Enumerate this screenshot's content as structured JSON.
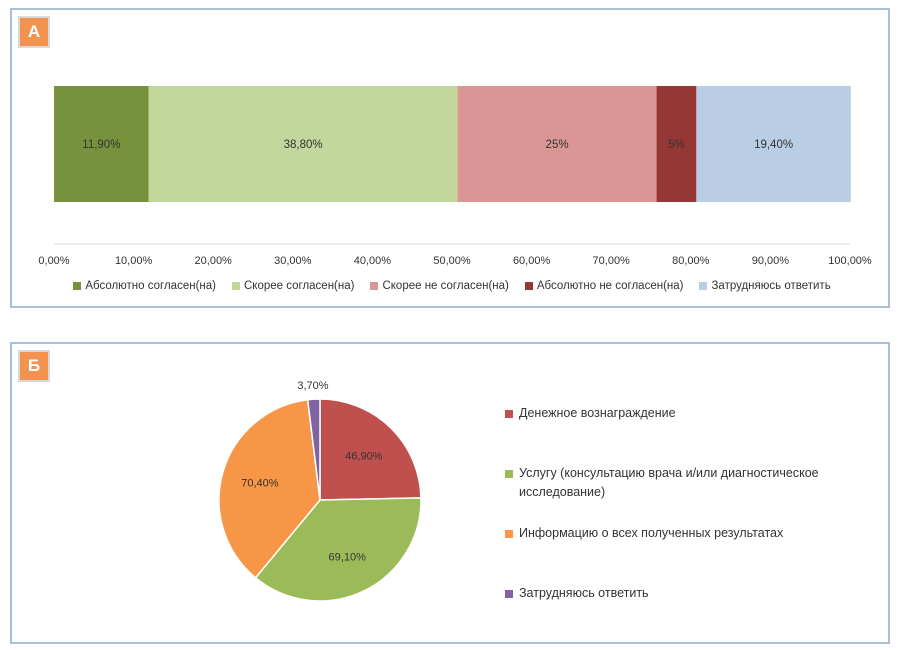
{
  "panels": {
    "a": {
      "badge": "А"
    },
    "b": {
      "badge": "Б"
    }
  },
  "chart_data": [
    {
      "type": "bar",
      "orientation": "horizontal-stacked-100",
      "series": [
        {
          "name": "Абсолютно согласен(на)",
          "value": 11.9,
          "label": "11,90%",
          "color": "#76923c"
        },
        {
          "name": "Скорее согласен(на)",
          "value": 38.8,
          "label": "38,80%",
          "color": "#c3d69b"
        },
        {
          "name": "Скорее не согласен(на)",
          "value": 25,
          "label": "25%",
          "color": "#d99694"
        },
        {
          "name": "Абсолютно не согласен(на)",
          "value": 5,
          "label": "5%",
          "color": "#953735"
        },
        {
          "name": "Затрудняюсь ответить",
          "value": 19.4,
          "label": "19,40%",
          "color": "#b9cde5"
        }
      ],
      "xlim": [
        0,
        100
      ],
      "xticks": [
        "0,00%",
        "10,00%",
        "20,00%",
        "30,00%",
        "40,00%",
        "50,00%",
        "60,00%",
        "70,00%",
        "80,00%",
        "90,00%",
        "100,00%"
      ],
      "legend": "bottom"
    },
    {
      "type": "pie",
      "slices": [
        {
          "name": "Денежное вознаграждение",
          "value": 46.9,
          "label": "46,90%",
          "color": "#c0504d"
        },
        {
          "name": "Услугу (консультацию врача и/или  диагностическое исследование)",
          "value": 69.1,
          "label": "69,10%",
          "color": "#9bbb59"
        },
        {
          "name": "Информацию о всех полученных результатах",
          "value": 70.4,
          "label": "70,40%",
          "color": "#f79646"
        },
        {
          "name": "Затрудняюсь ответить",
          "value": 3.7,
          "label": "3,70%",
          "color": "#8064a2"
        }
      ],
      "legend": "right"
    }
  ]
}
